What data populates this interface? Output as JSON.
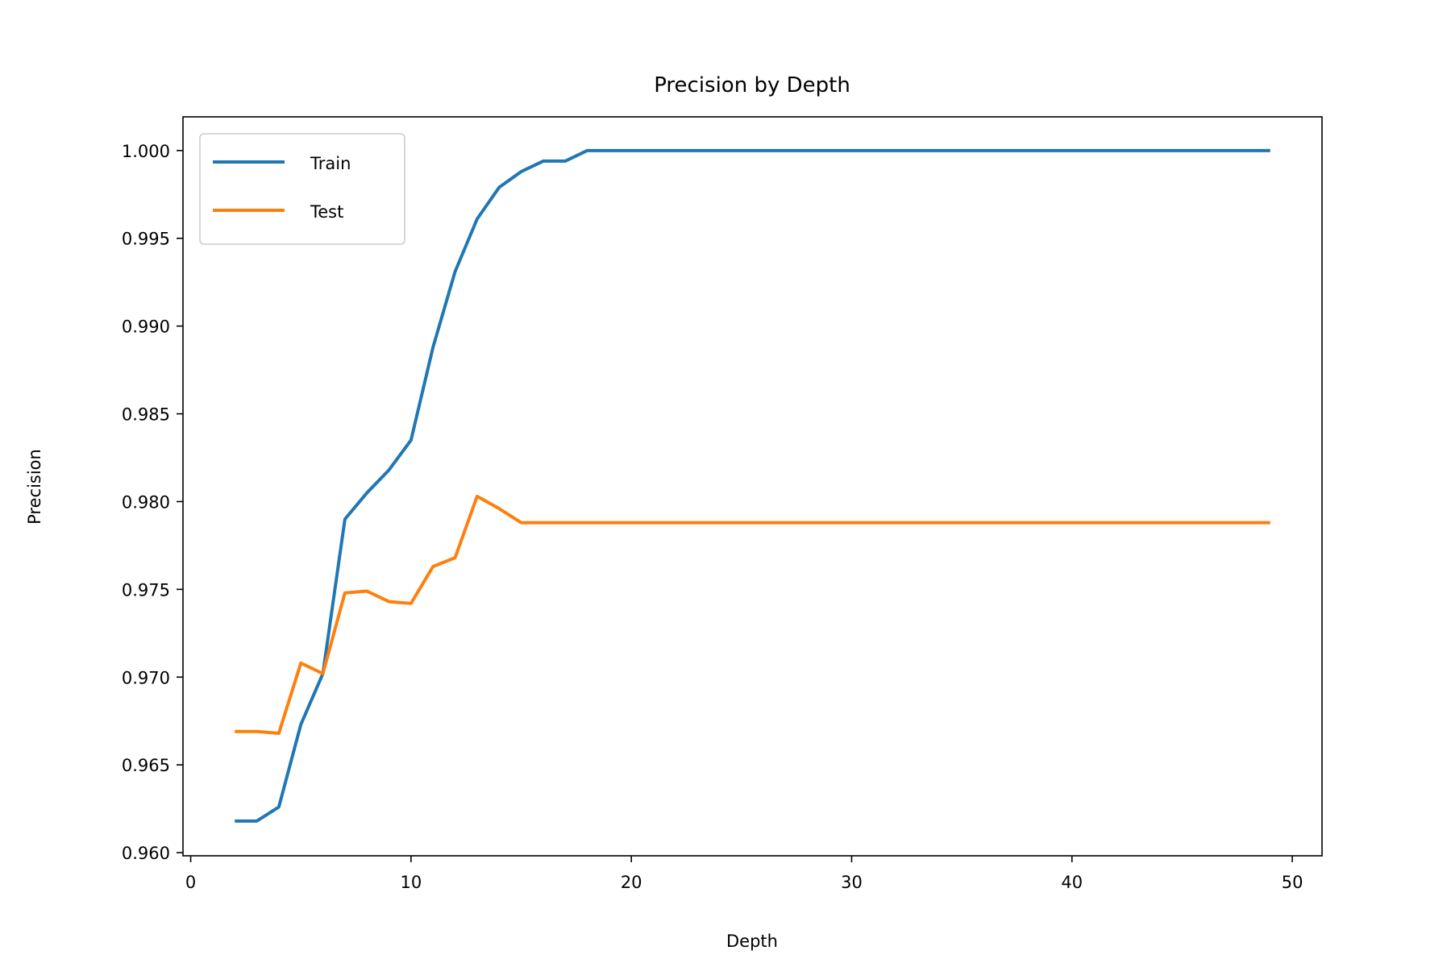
{
  "chart_data": {
    "type": "line",
    "title": "Precision by Depth",
    "xlabel": "Depth",
    "ylabel": "Precision",
    "xlim": [
      -0.35,
      51.35
    ],
    "ylim": [
      0.95982,
      1.00192
    ],
    "xticks": [
      0,
      10,
      20,
      30,
      40,
      50
    ],
    "yticks": [
      0.96,
      0.965,
      0.97,
      0.975,
      0.98,
      0.985,
      0.99,
      0.995,
      1.0
    ],
    "ytick_decimals": 3,
    "grid": false,
    "legend": "upper-left",
    "x": [
      2,
      3,
      4,
      5,
      6,
      7,
      8,
      9,
      10,
      11,
      12,
      13,
      14,
      15,
      16,
      17,
      18,
      19,
      20,
      21,
      22,
      23,
      24,
      25,
      26,
      27,
      28,
      29,
      30,
      31,
      32,
      33,
      34,
      35,
      36,
      37,
      38,
      39,
      40,
      41,
      42,
      43,
      44,
      45,
      46,
      47,
      48,
      49
    ],
    "series": [
      {
        "name": "Train",
        "color": "#1f77b4",
        "values": [
          0.9618,
          0.9618,
          0.9626,
          0.9673,
          0.9702,
          0.979,
          0.9805,
          0.9818,
          0.9835,
          0.9888,
          0.9931,
          0.9961,
          0.9979,
          0.9988,
          0.9994,
          0.9994,
          1.0,
          1.0,
          1.0,
          1.0,
          1.0,
          1.0,
          1.0,
          1.0,
          1.0,
          1.0,
          1.0,
          1.0,
          1.0,
          1.0,
          1.0,
          1.0,
          1.0,
          1.0,
          1.0,
          1.0,
          1.0,
          1.0,
          1.0,
          1.0,
          1.0,
          1.0,
          1.0,
          1.0,
          1.0,
          1.0,
          1.0,
          1.0
        ]
      },
      {
        "name": "Test",
        "color": "#ff7f0e",
        "values": [
          0.9669,
          0.9669,
          0.9668,
          0.9708,
          0.9702,
          0.9748,
          0.9749,
          0.9743,
          0.9742,
          0.9763,
          0.9768,
          0.9803,
          0.9796,
          0.9788,
          0.9788,
          0.9788,
          0.9788,
          0.9788,
          0.9788,
          0.9788,
          0.9788,
          0.9788,
          0.9788,
          0.9788,
          0.9788,
          0.9788,
          0.9788,
          0.9788,
          0.9788,
          0.9788,
          0.9788,
          0.9788,
          0.9788,
          0.9788,
          0.9788,
          0.9788,
          0.9788,
          0.9788,
          0.9788,
          0.9788,
          0.9788,
          0.9788,
          0.9788,
          0.9788,
          0.9788,
          0.9788,
          0.9788,
          0.9788
        ]
      }
    ]
  }
}
